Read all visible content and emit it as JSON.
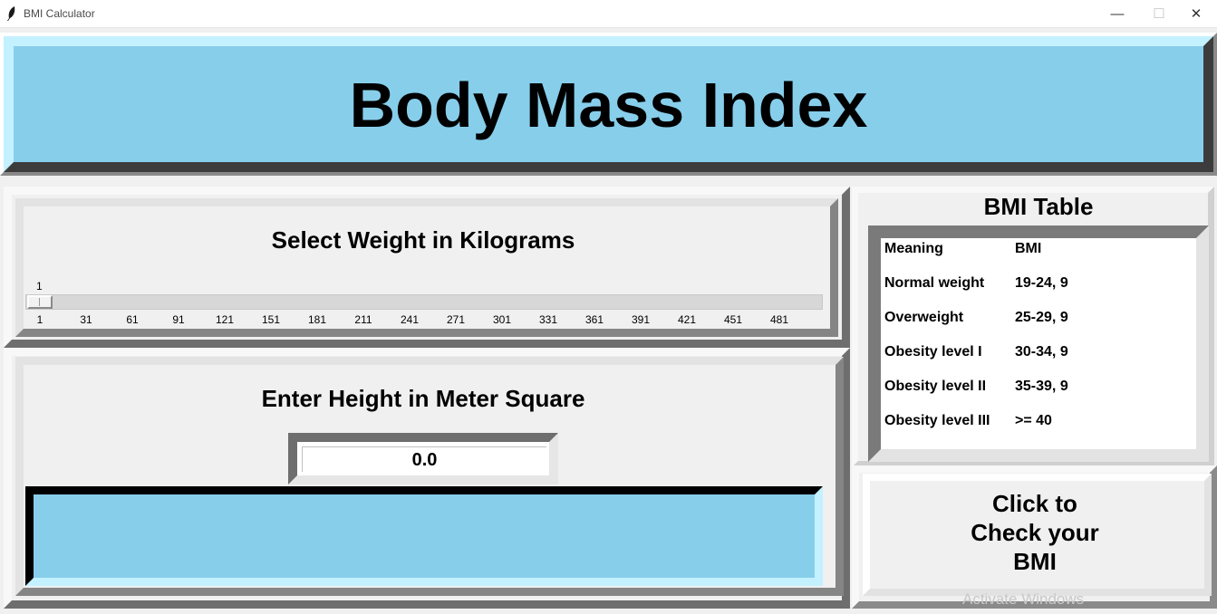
{
  "window": {
    "title": "BMI Calculator",
    "minimize_glyph": "—",
    "maximize_glyph": "☐",
    "close_glyph": "✕",
    "app_icon": "feather-icon"
  },
  "header": {
    "title": "Body Mass Index",
    "background_color": "#87ceeb"
  },
  "weight": {
    "label": "Select Weight in Kilograms",
    "slider": {
      "value": "1",
      "min": 1,
      "ticks": [
        "1",
        "31",
        "61",
        "91",
        "121",
        "151",
        "181",
        "211",
        "241",
        "271",
        "301",
        "331",
        "361",
        "391",
        "421",
        "451",
        "481"
      ]
    }
  },
  "height": {
    "label": "Enter Height in Meter Square",
    "value": "0.0"
  },
  "result": {
    "text": "",
    "background_color": "#87ceeb"
  },
  "bmi_table": {
    "title": "BMI Table",
    "rows": [
      {
        "meaning": "Meaning",
        "bmi": "BMI"
      },
      {
        "meaning": "Normal weight",
        "bmi": "19-24, 9"
      },
      {
        "meaning": "Overweight",
        "bmi": "25-29, 9"
      },
      {
        "meaning": "Obesity level I",
        "bmi": "30-34, 9"
      },
      {
        "meaning": "Obesity level II",
        "bmi": "35-39, 9"
      },
      {
        "meaning": "Obesity level III",
        "bmi": ">= 40"
      }
    ]
  },
  "check_button": {
    "label": "Click to\nCheck your\nBMI"
  },
  "watermark": "Activate Windows"
}
